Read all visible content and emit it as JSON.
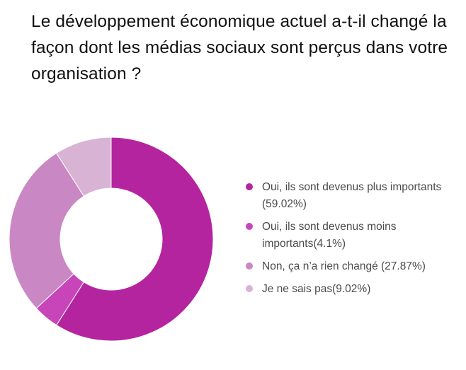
{
  "chart_data": {
    "type": "pie",
    "title": "Le développement économique actuel a-t-il changé la façon dont les médias sociaux sont perçus dans votre organisation ?",
    "legend_position": "right",
    "donut": true,
    "slices": [
      {
        "label": "Oui, ils sont devenus plus importants (59.02%)",
        "value": 59.02,
        "color": "#b5249f"
      },
      {
        "label": "Oui, ils sont devenus moins importants(4.1%)",
        "value": 4.1,
        "color": "#c845b9"
      },
      {
        "label": "Non, ça n’a rien changé (27.87%)",
        "value": 27.87,
        "color": "#c987c4"
      },
      {
        "label": "Je ne sais pas(9.02%)",
        "value": 9.02,
        "color": "#d8b3d4"
      }
    ]
  }
}
